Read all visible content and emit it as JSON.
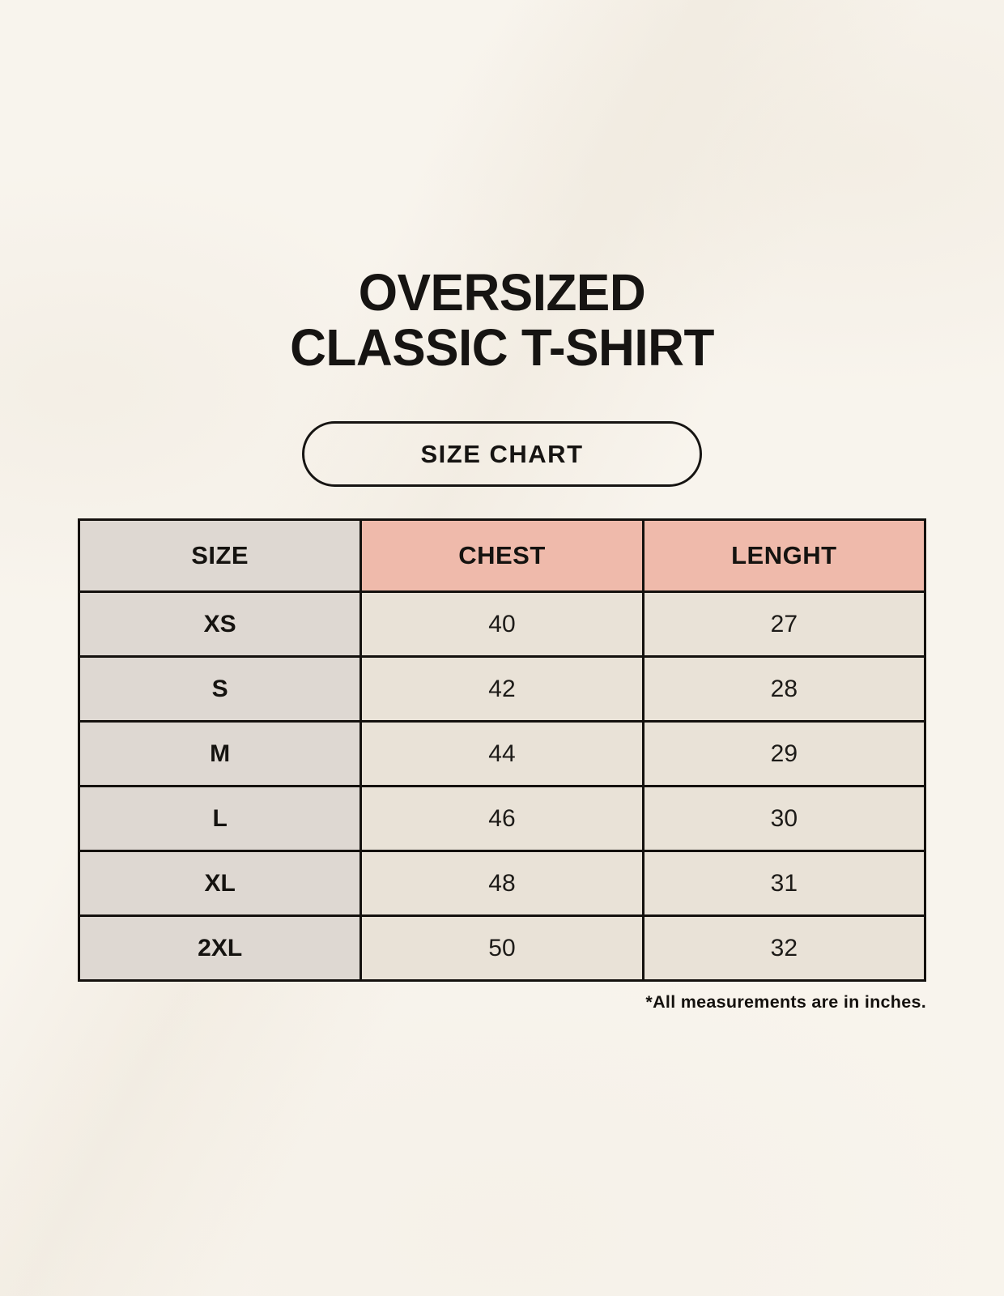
{
  "page": {
    "title_line1": "OVERSIZED",
    "title_line2": "CLASSIC T-SHIRT",
    "badge_label": "SIZE CHART",
    "footnote": "*All measurements are in inches."
  },
  "colors": {
    "page_background": "#f8f4ed",
    "size_column_background": "#ded8d2",
    "header_accent_background": "#efbaab",
    "data_cell_background": "#e9e2d7",
    "border": "#14110e",
    "text": "#161412"
  },
  "chart_data": {
    "type": "table",
    "title": "OVERSIZED CLASSIC T-SHIRT — SIZE CHART",
    "columns": [
      "SIZE",
      "CHEST",
      "LENGHT"
    ],
    "rows": [
      [
        "XS",
        "40",
        "27"
      ],
      [
        "S",
        "42",
        "28"
      ],
      [
        "M",
        "44",
        "29"
      ],
      [
        "L",
        "46",
        "30"
      ],
      [
        "XL",
        "48",
        "31"
      ],
      [
        "2XL",
        "50",
        "32"
      ]
    ],
    "units_note": "*All measurements are in inches."
  }
}
